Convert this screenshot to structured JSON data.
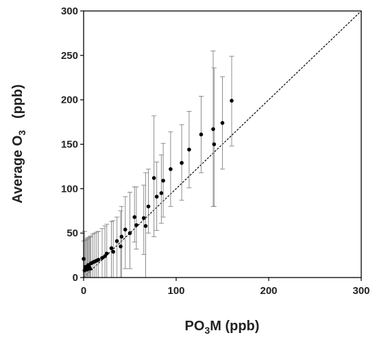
{
  "chart_data": {
    "type": "scatter",
    "title": "",
    "xlabel": {
      "main": "PO",
      "sub": "3",
      "rest": "M (ppb)"
    },
    "ylabel": {
      "main": "Average O",
      "sub": "3",
      "rest": "   (ppb)"
    },
    "xlim": [
      0,
      300
    ],
    "ylim": [
      0,
      300
    ],
    "x_ticks": [
      "0",
      "100",
      "200",
      "300"
    ],
    "y_ticks": [
      "0",
      "50",
      "100",
      "150",
      "200",
      "250",
      "300"
    ],
    "grid": false,
    "legend": "none",
    "reference_line": {
      "style": "dashed",
      "x": [
        0,
        300
      ],
      "y": [
        0,
        300
      ]
    },
    "colors": {
      "points": "#000000",
      "error_bars": "#8c8c8c",
      "axes": "#000000"
    },
    "series": [
      {
        "points": [
          {
            "x": 0,
            "y": 21,
            "lo": 0,
            "hi": 41
          },
          {
            "x": 1,
            "y": 8,
            "lo": 0,
            "hi": 52
          },
          {
            "x": 2,
            "y": 12,
            "lo": 0,
            "hi": 42
          },
          {
            "x": 3,
            "y": 10,
            "lo": 0,
            "hi": 43
          },
          {
            "x": 4,
            "y": 9,
            "lo": 0,
            "hi": 44
          },
          {
            "x": 5,
            "y": 14,
            "lo": 0,
            "hi": 45
          },
          {
            "x": 6,
            "y": 12,
            "lo": 0,
            "hi": 45
          },
          {
            "x": 7,
            "y": 10,
            "lo": 0,
            "hi": 46
          },
          {
            "x": 8,
            "y": 16,
            "lo": 0,
            "hi": 47
          },
          {
            "x": 10,
            "y": 17,
            "lo": 0,
            "hi": 49
          },
          {
            "x": 12,
            "y": 18,
            "lo": 0,
            "hi": 50
          },
          {
            "x": 14,
            "y": 19,
            "lo": 0,
            "hi": 51
          },
          {
            "x": 16,
            "y": 20,
            "lo": 0,
            "hi": 52
          },
          {
            "x": 20,
            "y": 22,
            "lo": 0,
            "hi": 55
          },
          {
            "x": 23,
            "y": 24,
            "lo": 0,
            "hi": 58
          },
          {
            "x": 25,
            "y": 27,
            "lo": 0,
            "hi": 60
          },
          {
            "x": 30,
            "y": 33,
            "lo": 0,
            "hi": 63
          },
          {
            "x": 32,
            "y": 29,
            "lo": 0,
            "hi": 64
          },
          {
            "x": 36,
            "y": 41,
            "lo": 0,
            "hi": 68
          },
          {
            "x": 40,
            "y": 35,
            "lo": 0,
            "hi": 75
          },
          {
            "x": 41,
            "y": 46,
            "lo": 0,
            "hi": 80
          },
          {
            "x": 45,
            "y": 54,
            "lo": 10,
            "hi": 91
          },
          {
            "x": 50,
            "y": 50,
            "lo": 10,
            "hi": 96
          },
          {
            "x": 55,
            "y": 68,
            "lo": 40,
            "hi": 102
          },
          {
            "x": 57,
            "y": 59,
            "lo": 32,
            "hi": 102
          },
          {
            "x": 65,
            "y": 67,
            "lo": 26,
            "hi": 104
          },
          {
            "x": 67,
            "y": 58,
            "lo": 0,
            "hi": 118
          },
          {
            "x": 70,
            "y": 80,
            "lo": 50,
            "hi": 122
          },
          {
            "x": 76,
            "y": 112,
            "lo": 46,
            "hi": 182
          },
          {
            "x": 79,
            "y": 91,
            "lo": 53,
            "hi": 130
          },
          {
            "x": 84,
            "y": 95,
            "lo": 61,
            "hi": 138
          },
          {
            "x": 86,
            "y": 109,
            "lo": 68,
            "hi": 151
          },
          {
            "x": 94,
            "y": 122,
            "lo": 80,
            "hi": 164
          },
          {
            "x": 106,
            "y": 129,
            "lo": 87,
            "hi": 172
          },
          {
            "x": 114,
            "y": 144,
            "lo": 101,
            "hi": 187
          },
          {
            "x": 127,
            "y": 161,
            "lo": 118,
            "hi": 204
          },
          {
            "x": 140,
            "y": 167,
            "lo": 80,
            "hi": 255
          },
          {
            "x": 141,
            "y": 150,
            "lo": 80,
            "hi": 236
          },
          {
            "x": 150,
            "y": 174,
            "lo": 122,
            "hi": 226
          },
          {
            "x": 160,
            "y": 199,
            "lo": 148,
            "hi": 249
          }
        ]
      }
    ]
  }
}
